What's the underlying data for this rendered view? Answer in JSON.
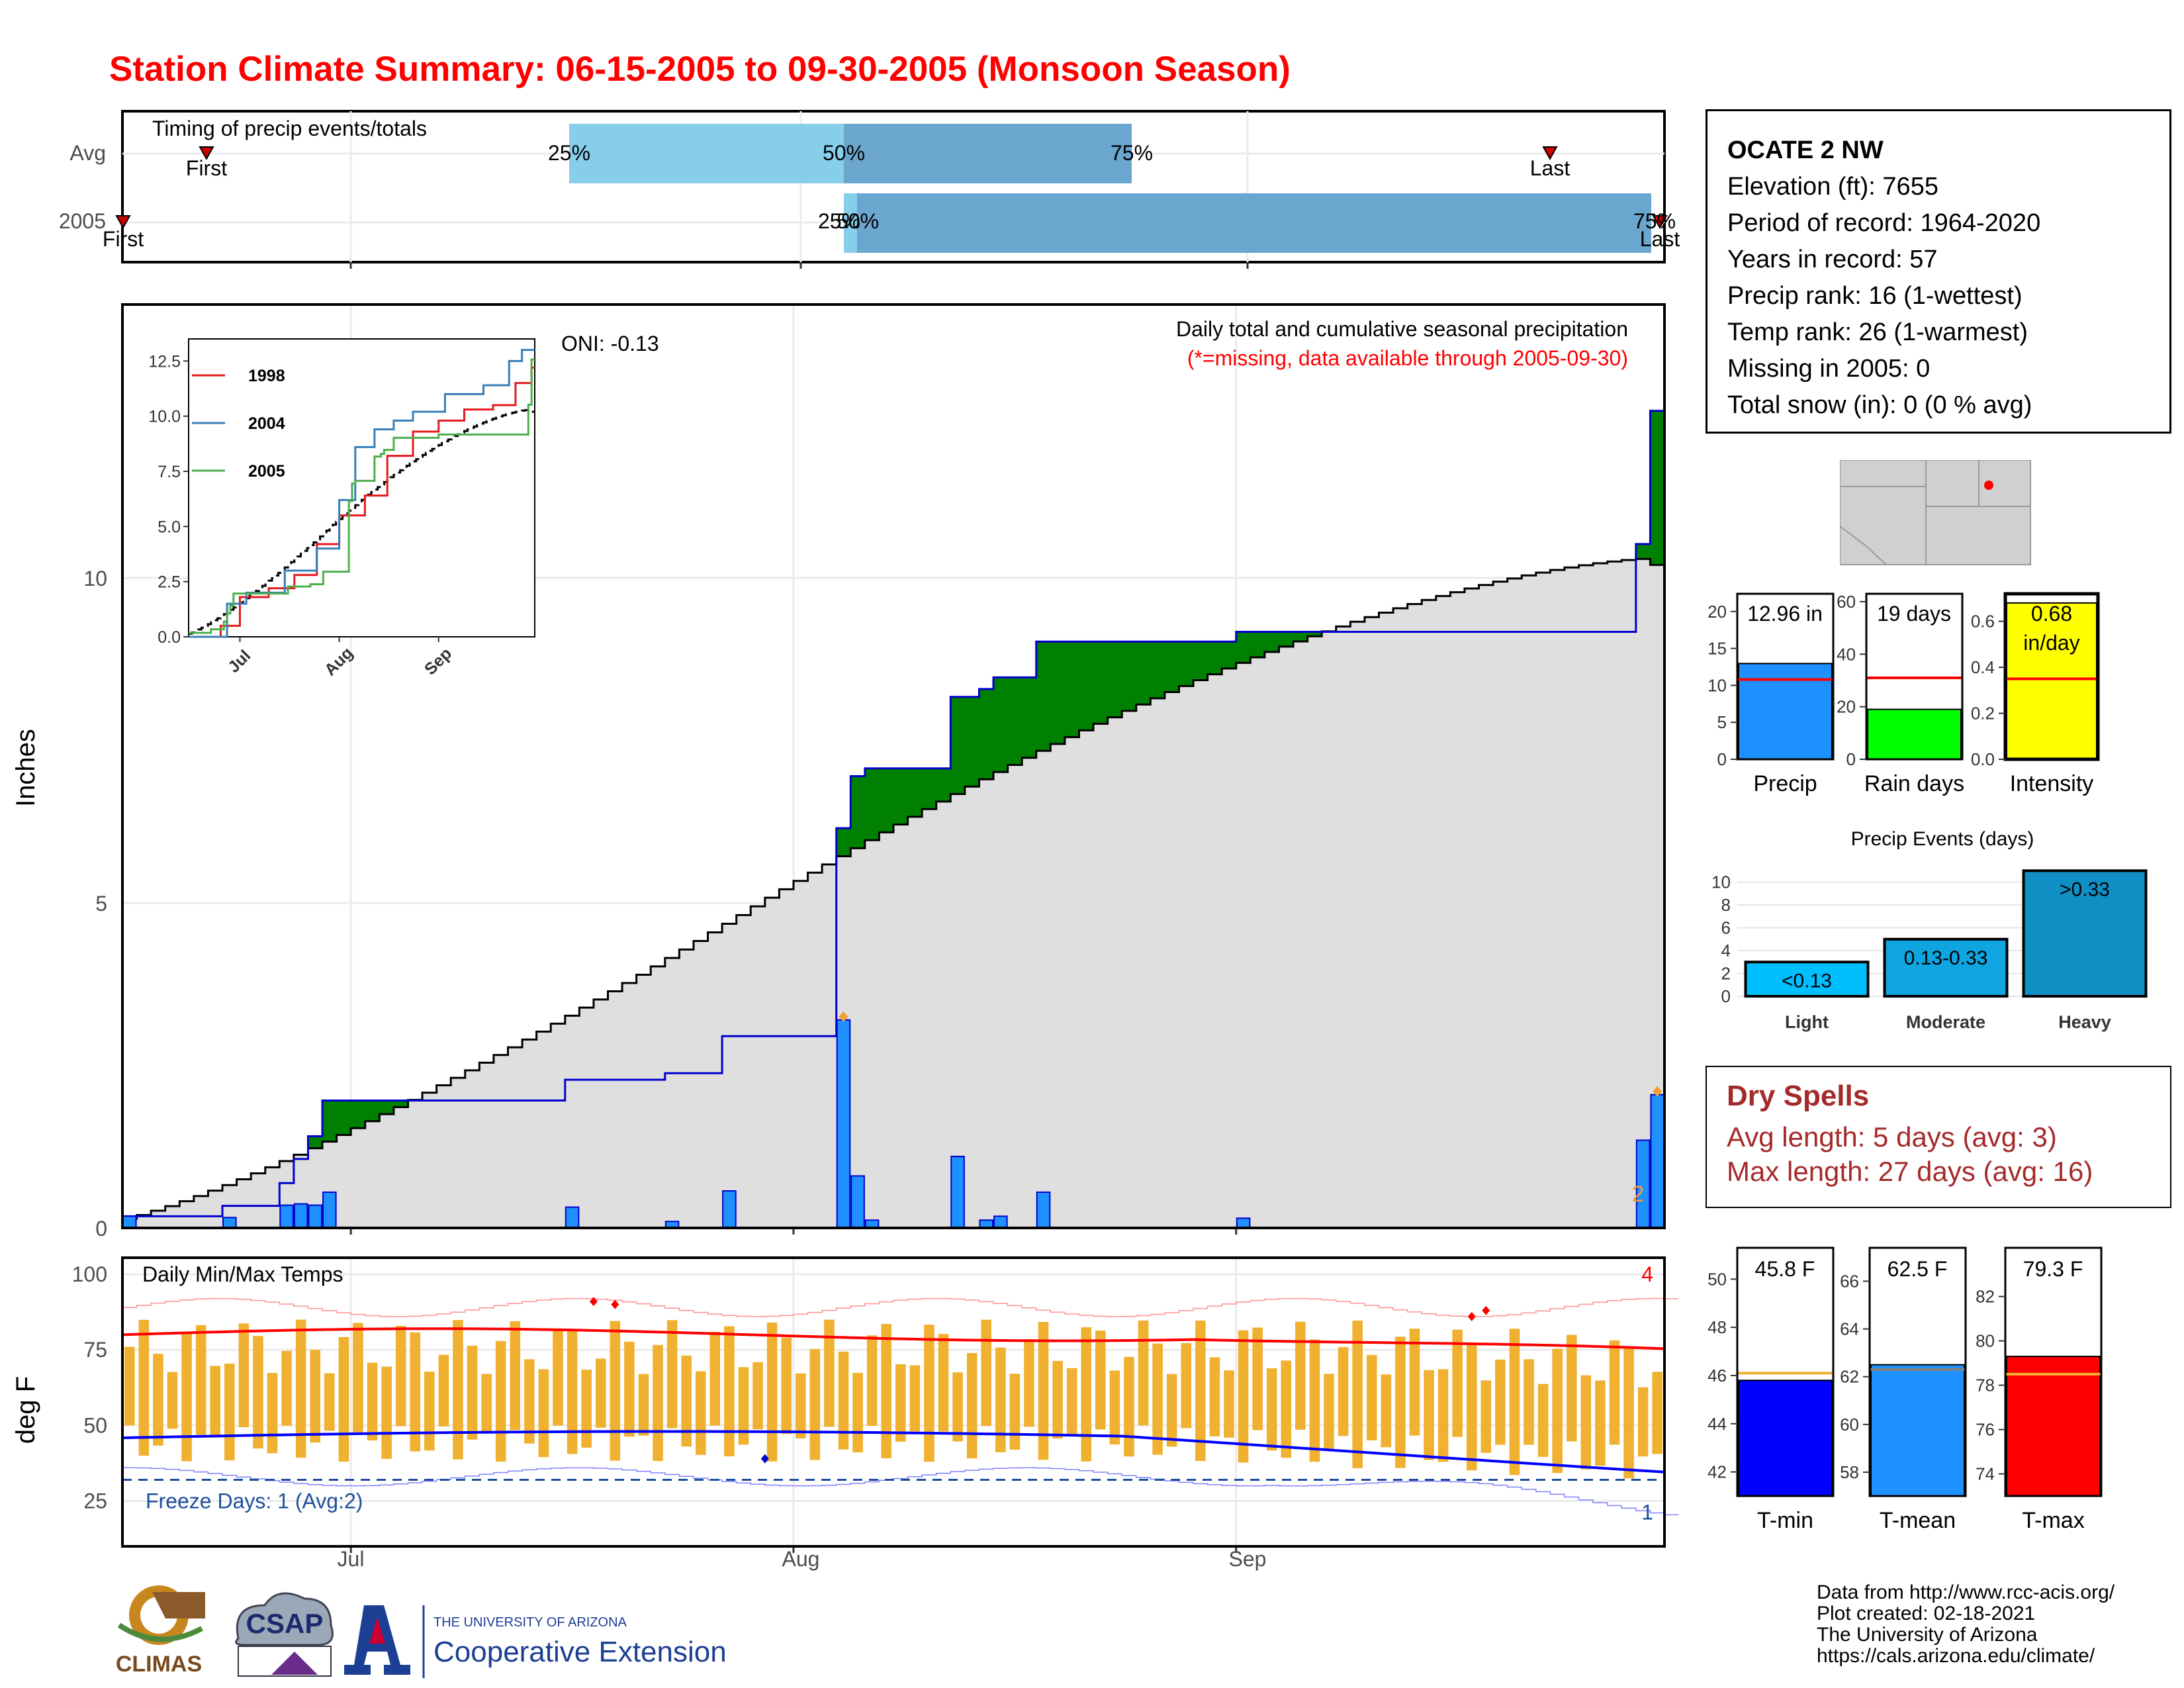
{
  "title": "Station Climate Summary: 06-15-2005 to 09-30-2005 (Monsoon Season)",
  "timing": {
    "label": "Timing of precip events/totals",
    "rows": [
      "Avg",
      "2005"
    ],
    "avg_first": "First",
    "avg_last": "Last",
    "pct_25": "25%",
    "pct_50": "50%",
    "pct_75": "75%",
    "y2005_first": "First",
    "y2005_last": "Last",
    "y2005_p25": "25%",
    "y2005_p50": "50%",
    "y2005_p75": "75%",
    "colors": {
      "q1": "#87ceeb",
      "q2": "#6ba6cf",
      "marker": "#cc0000"
    }
  },
  "main_chart": {
    "ylabel": "Inches",
    "yticks": [
      "0",
      "5",
      "10"
    ],
    "xticks": [
      "Jul",
      "Aug",
      "Sep"
    ],
    "oni": "ONI: -0.13",
    "caption1": "Daily total and cumulative seasonal precipitation",
    "caption2": "(*=missing, data available through 2005-09-30)",
    "end_marker": "2",
    "colors": {
      "above": "#008000",
      "below": "#8b5a00",
      "avg_fill": "#dfdfdf",
      "daily_bar": "#1e90ff",
      "outline": "#0000cd"
    }
  },
  "inset": {
    "yticks": [
      "0.0",
      "2.5",
      "5.0",
      "7.5",
      "10.0",
      "12.5"
    ],
    "xticks": [
      "Jul",
      "Aug",
      "Sep"
    ],
    "legend": [
      {
        "label": "1998",
        "color": "#e41a1c"
      },
      {
        "label": "2004",
        "color": "#377eb8"
      },
      {
        "label": "2005",
        "color": "#4daf4a"
      }
    ]
  },
  "station": {
    "name": "OCATE 2 NW",
    "elevation": "Elevation (ft): 7655",
    "period": "Period of record: 1964-2020",
    "years": "Years in record: 57",
    "precip_rank": "Precip rank: 16 (1-wettest)",
    "temp_rank": "Temp rank: 26 (1-warmest)",
    "missing": "Missing in 2005: 0",
    "snow": "Total snow (in): 0 (0 % avg)"
  },
  "mini_bars": {
    "precip": {
      "label": "Precip",
      "value_text": "12.96 in",
      "value": 12.96,
      "avg": 10.8,
      "yticks": [
        "0",
        "5",
        "10",
        "15",
        "20"
      ],
      "color": "#1e90ff"
    },
    "raindays": {
      "label": "Rain days",
      "value_text": "19 days",
      "value": 19,
      "avg": 31,
      "yticks": [
        "0",
        "20",
        "40",
        "60"
      ],
      "color": "#00ff00"
    },
    "intensity": {
      "label": "Intensity",
      "value_text": "0.68",
      "value_text2": "in/day",
      "value": 0.68,
      "avg": 0.35,
      "yticks": [
        "0.0",
        "0.2",
        "0.4",
        "0.6"
      ],
      "color": "#ffff00"
    }
  },
  "precip_events": {
    "title": "Precip Events (days)",
    "yticks": [
      "0",
      "2",
      "4",
      "6",
      "8",
      "10"
    ],
    "categories": [
      "Light",
      "Moderate",
      "Heavy"
    ],
    "labels": [
      "<0.13",
      "0.13-0.33",
      ">0.33"
    ],
    "values": [
      3,
      5,
      11
    ],
    "colors": [
      "#00bfff",
      "#0ea5e0",
      "#0f8fc4"
    ]
  },
  "dry_spells": {
    "title": "Dry Spells",
    "avg": "Avg length: 5 days (avg: 3)",
    "max": "Max length: 27 days (avg: 16)"
  },
  "temps": {
    "ylabel": "deg F",
    "label": "Daily Min/Max Temps",
    "yticks": [
      "25",
      "50",
      "75",
      "100"
    ],
    "xticks": [
      "Jul",
      "Aug",
      "Sep"
    ],
    "hot_count": "4",
    "freeze": "Freeze Days: 1 (Avg:2)",
    "freeze_count": "1",
    "colors": {
      "range": "#f0b030",
      "max": "#ff0000",
      "min": "#0000ff"
    }
  },
  "temp_bars": {
    "tmin": {
      "label": "T-min",
      "value_text": "45.8 F",
      "value": 45.8,
      "avg": 46.1,
      "yticks": [
        "42",
        "44",
        "46",
        "48",
        "50"
      ],
      "color": "#0000ff"
    },
    "tmean": {
      "label": "T-mean",
      "value_text": "62.5 F",
      "value": 62.5,
      "avg": 62.3,
      "yticks": [
        "58",
        "60",
        "62",
        "64",
        "66"
      ],
      "color": "#1e90ff"
    },
    "tmax": {
      "label": "T-max",
      "value_text": "79.3 F",
      "value": 79.3,
      "avg": 78.5,
      "yticks": [
        "74",
        "76",
        "78",
        "80",
        "82"
      ],
      "color": "#ff0000"
    }
  },
  "logos": {
    "climas": "CLIMAS",
    "csap": "CSAP",
    "ua_small": "THE UNIVERSITY OF ARIZONA",
    "coop": "Cooperative Extension"
  },
  "footer": {
    "line1": "Data from http://www.rcc-acis.org/",
    "line2": "Plot created: 02-18-2021",
    "line3": "The University of Arizona",
    "line4": "https://cals.arizona.edu/climate/"
  }
}
